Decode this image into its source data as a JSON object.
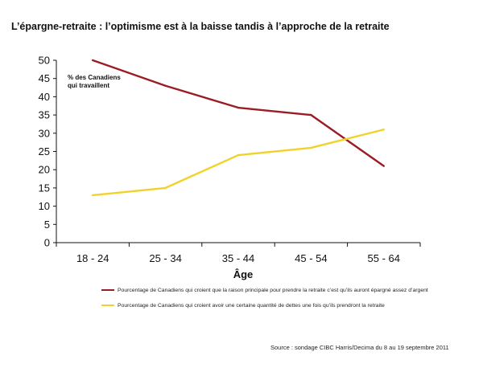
{
  "title": "L’épargne-retraite : l’optimisme est à la baisse tandis à l’approche de la retraite",
  "chart_data": {
    "type": "line",
    "categories": [
      "18 - 24",
      "25 - 34",
      "35 - 44",
      "45 - 54",
      "55 - 64"
    ],
    "series": [
      {
        "name": "Pourcentage de Canadiens qui croient que la raison principale pour prendre la retraite c’est qu’ils auront épargné assez d’argent",
        "color": "#9b1c24",
        "values": [
          50,
          43,
          37,
          35,
          21
        ]
      },
      {
        "name": "Pourcentage de Canadiens qui croient avoir une certaine quantité de dettes une fois qu’ils prendront la retraite",
        "color": "#f2d22a",
        "values": [
          13,
          15,
          24,
          26,
          31
        ]
      }
    ],
    "xlabel": "Âge",
    "ylabel": "",
    "ylim": [
      0,
      50
    ],
    "yticks": [
      0,
      5,
      10,
      15,
      20,
      25,
      30,
      35,
      40,
      45,
      50
    ],
    "annotation": [
      "% des Canadiens",
      "qui travaillent"
    ],
    "legend_position": "bottom",
    "grid": false
  },
  "source": "Source : sondage CIBC Harris/Decima du 8 au 19 septembre 2011"
}
